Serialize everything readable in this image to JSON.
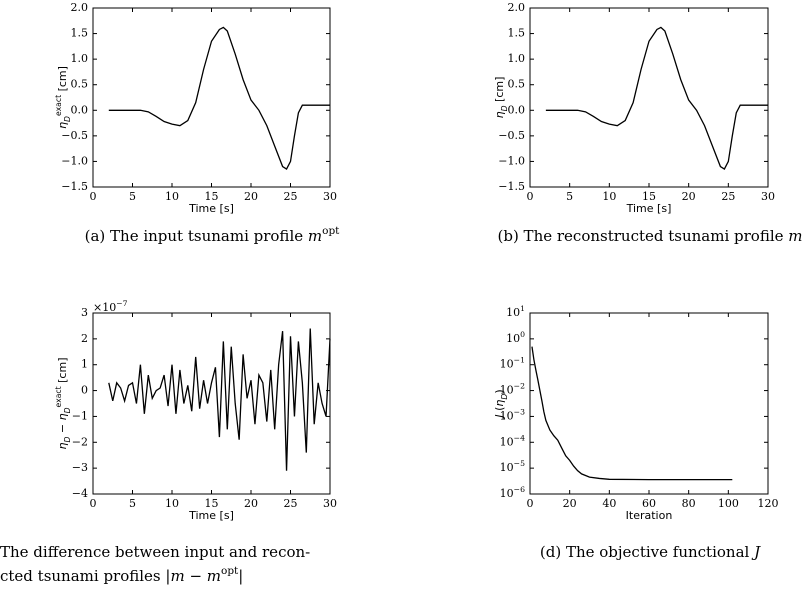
{
  "chart_data": [
    {
      "type": "line",
      "caption": [
        {
          "text": "(a) The input tsunami profile "
        },
        {
          "math": "m"
        },
        {
          "sup": "opt"
        }
      ],
      "xlabel": [
        {
          "text": "Time [s]"
        }
      ],
      "ylabel": [
        {
          "math": "η"
        },
        {
          "sub": "D"
        },
        {
          "sup": "exact"
        },
        {
          "text": " [cm]"
        }
      ],
      "x": [
        2,
        4,
        6,
        7,
        8,
        9,
        10,
        11,
        12,
        13,
        14,
        15,
        16,
        16.5,
        17,
        18,
        19,
        20,
        21,
        22,
        23,
        24,
        24.5,
        25,
        25.5,
        26,
        26.5,
        27,
        28,
        29,
        30
      ],
      "y": [
        0,
        0,
        0,
        -0.03,
        -0.12,
        -0.22,
        -0.27,
        -0.3,
        -0.2,
        0.15,
        0.8,
        1.35,
        1.58,
        1.62,
        1.55,
        1.1,
        0.6,
        0.2,
        0.0,
        -0.3,
        -0.7,
        -1.1,
        -1.15,
        -1.0,
        -0.5,
        -0.05,
        0.1,
        0.1,
        0.1,
        0.1,
        0.1
      ],
      "color": "#000000",
      "xlim": [
        0,
        30
      ],
      "xticks": [
        0,
        5,
        10,
        15,
        20,
        25,
        30
      ],
      "ylim": [
        -1.5,
        2.0
      ],
      "yticks": [
        {
          "value": -1.5,
          "label": "−1.5"
        },
        {
          "value": -1.0,
          "label": "−1.0"
        },
        {
          "value": -0.5,
          "label": "−0.5"
        },
        {
          "value": 0,
          "label": "0.0"
        },
        {
          "value": 0.5,
          "label": "0.5"
        },
        {
          "value": 1.0,
          "label": "1.0"
        },
        {
          "value": 1.5,
          "label": "1.5"
        },
        {
          "value": 2.0,
          "label": "2.0"
        }
      ]
    },
    {
      "type": "line",
      "caption": [
        {
          "text": "(b) The reconstructed tsunami profile "
        },
        {
          "math": "m"
        }
      ],
      "xlabel": [
        {
          "text": "Time [s]"
        }
      ],
      "ylabel": [
        {
          "math": "η"
        },
        {
          "sub": "D"
        },
        {
          "text": " [cm]"
        }
      ],
      "x": [
        2,
        4,
        6,
        7,
        8,
        9,
        10,
        11,
        12,
        13,
        14,
        15,
        16,
        16.5,
        17,
        18,
        19,
        20,
        21,
        22,
        23,
        24,
        24.5,
        25,
        25.5,
        26,
        26.5,
        27,
        28,
        29,
        30
      ],
      "y": [
        0,
        0,
        0,
        -0.03,
        -0.12,
        -0.22,
        -0.27,
        -0.3,
        -0.2,
        0.15,
        0.8,
        1.35,
        1.58,
        1.62,
        1.55,
        1.1,
        0.6,
        0.2,
        0.0,
        -0.3,
        -0.7,
        -1.1,
        -1.15,
        -1.0,
        -0.5,
        -0.05,
        0.1,
        0.1,
        0.1,
        0.1,
        0.1
      ],
      "color": "#000000",
      "xlim": [
        0,
        30
      ],
      "xticks": [
        0,
        5,
        10,
        15,
        20,
        25,
        30
      ],
      "ylim": [
        -1.5,
        2.0
      ],
      "yticks": [
        {
          "value": -1.5,
          "label": "−1.5"
        },
        {
          "value": -1.0,
          "label": "−1.0"
        },
        {
          "value": -0.5,
          "label": "−0.5"
        },
        {
          "value": 0,
          "label": "0.0"
        },
        {
          "value": 0.5,
          "label": "0.5"
        },
        {
          "value": 1.0,
          "label": "1.0"
        },
        {
          "value": 1.5,
          "label": "1.5"
        },
        {
          "value": 2.0,
          "label": "2.0"
        }
      ]
    },
    {
      "type": "line",
      "caption": [
        {
          "text": "The difference between input and recon-"
        }
      ],
      "caption2": [
        {
          "text": "cted tsunami profiles "
        },
        {
          "math": "|m − m"
        },
        {
          "sup": "opt"
        },
        {
          "math": "|"
        }
      ],
      "xlabel": [
        {
          "text": "Time [s]"
        }
      ],
      "ylabel": [
        {
          "math": "η"
        },
        {
          "sub": "D"
        },
        {
          "text": " − "
        },
        {
          "math": "η"
        },
        {
          "sub": "D"
        },
        {
          "sup": "exact"
        },
        {
          "text": " [cm]"
        }
      ],
      "offset_label": [
        {
          "text": "×10"
        },
        {
          "sup": "−7"
        }
      ],
      "x": [
        2,
        2.5,
        3,
        3.5,
        4,
        4.5,
        5,
        5.5,
        6,
        6.5,
        7,
        7.5,
        8,
        8.5,
        9,
        9.5,
        10,
        10.5,
        11,
        11.5,
        12,
        12.5,
        13,
        13.5,
        14,
        14.5,
        15,
        15.5,
        16,
        16.5,
        17,
        17.5,
        18,
        18.5,
        19,
        19.5,
        20,
        20.5,
        21,
        21.5,
        22,
        22.5,
        23,
        23.5,
        24,
        24.5,
        25,
        25.5,
        26,
        26.5,
        27,
        27.5,
        28,
        28.5,
        29,
        29.5,
        30
      ],
      "y": [
        0.3,
        -0.4,
        0.3,
        0.1,
        -0.4,
        0.2,
        0.3,
        -0.5,
        1.0,
        -0.9,
        0.6,
        -0.3,
        0,
        0.1,
        0.6,
        -0.6,
        1.0,
        -0.9,
        0.8,
        -0.5,
        0.2,
        -0.8,
        1.3,
        -0.7,
        0.4,
        -0.5,
        0.3,
        0.9,
        -1.8,
        1.9,
        -1.5,
        1.7,
        -0.5,
        -1.9,
        1.4,
        -0.3,
        0.4,
        -1.3,
        0.6,
        0.3,
        -1.2,
        0.8,
        -1.5,
        1.0,
        2.3,
        -3.1,
        2.1,
        -1.0,
        1.9,
        0.3,
        -2.4,
        2.4,
        -1.3,
        0.3,
        -0.5,
        -1.0,
        2.0
      ],
      "color": "#000000",
      "xlim": [
        0,
        30
      ],
      "xticks": [
        0,
        5,
        10,
        15,
        20,
        25,
        30
      ],
      "ylim": [
        -4,
        3
      ],
      "yticks": [
        {
          "value": -4,
          "label": "−4"
        },
        {
          "value": -3,
          "label": "−3"
        },
        {
          "value": -2,
          "label": "−2"
        },
        {
          "value": -1,
          "label": "−1"
        },
        0,
        1,
        2,
        3
      ]
    },
    {
      "type": "line",
      "caption": [
        {
          "text": "(d) The objective functional "
        },
        {
          "math": "J"
        }
      ],
      "xlabel": [
        {
          "text": "Iteration"
        }
      ],
      "ylabel": [
        {
          "math": "J"
        },
        {
          "text": " ("
        },
        {
          "math": "η"
        },
        {
          "sub": "D"
        },
        {
          "text": ")"
        }
      ],
      "log_y": true,
      "x": [
        1,
        2,
        3,
        4,
        5,
        6,
        7,
        8,
        10,
        12,
        14,
        16,
        18,
        20,
        22,
        24,
        26,
        30,
        35,
        40,
        60,
        80,
        102
      ],
      "y": [
        0.5,
        0.15,
        0.06,
        0.025,
        0.01,
        0.004,
        0.0015,
        0.0007,
        0.0003,
        0.00018,
        0.00012,
        6e-05,
        3e-05,
        2e-05,
        1.2e-05,
        8e-06,
        6e-06,
        4.5e-06,
        4e-06,
        3.7e-06,
        3.6e-06,
        3.6e-06,
        3.6e-06
      ],
      "color": "#000000",
      "xlim": [
        0,
        120
      ],
      "xticks": [
        0,
        20,
        40,
        60,
        80,
        100,
        120
      ],
      "ylim": [
        1e-06,
        10
      ],
      "yticks": [
        {
          "value": 1e-06,
          "label": "10",
          "exponent": "−6"
        },
        {
          "value": 1e-05,
          "label": "10",
          "exponent": "−5"
        },
        {
          "value": 0.0001,
          "label": "10",
          "exponent": "−4"
        },
        {
          "value": 0.001,
          "label": "10",
          "exponent": "−3"
        },
        {
          "value": 0.01,
          "label": "10",
          "exponent": "−2"
        },
        {
          "value": 0.1,
          "label": "10",
          "exponent": "−1"
        },
        {
          "value": 1,
          "label": "10",
          "exponent": "0"
        },
        {
          "value": 10,
          "label": "10",
          "exponent": "1"
        }
      ]
    }
  ]
}
